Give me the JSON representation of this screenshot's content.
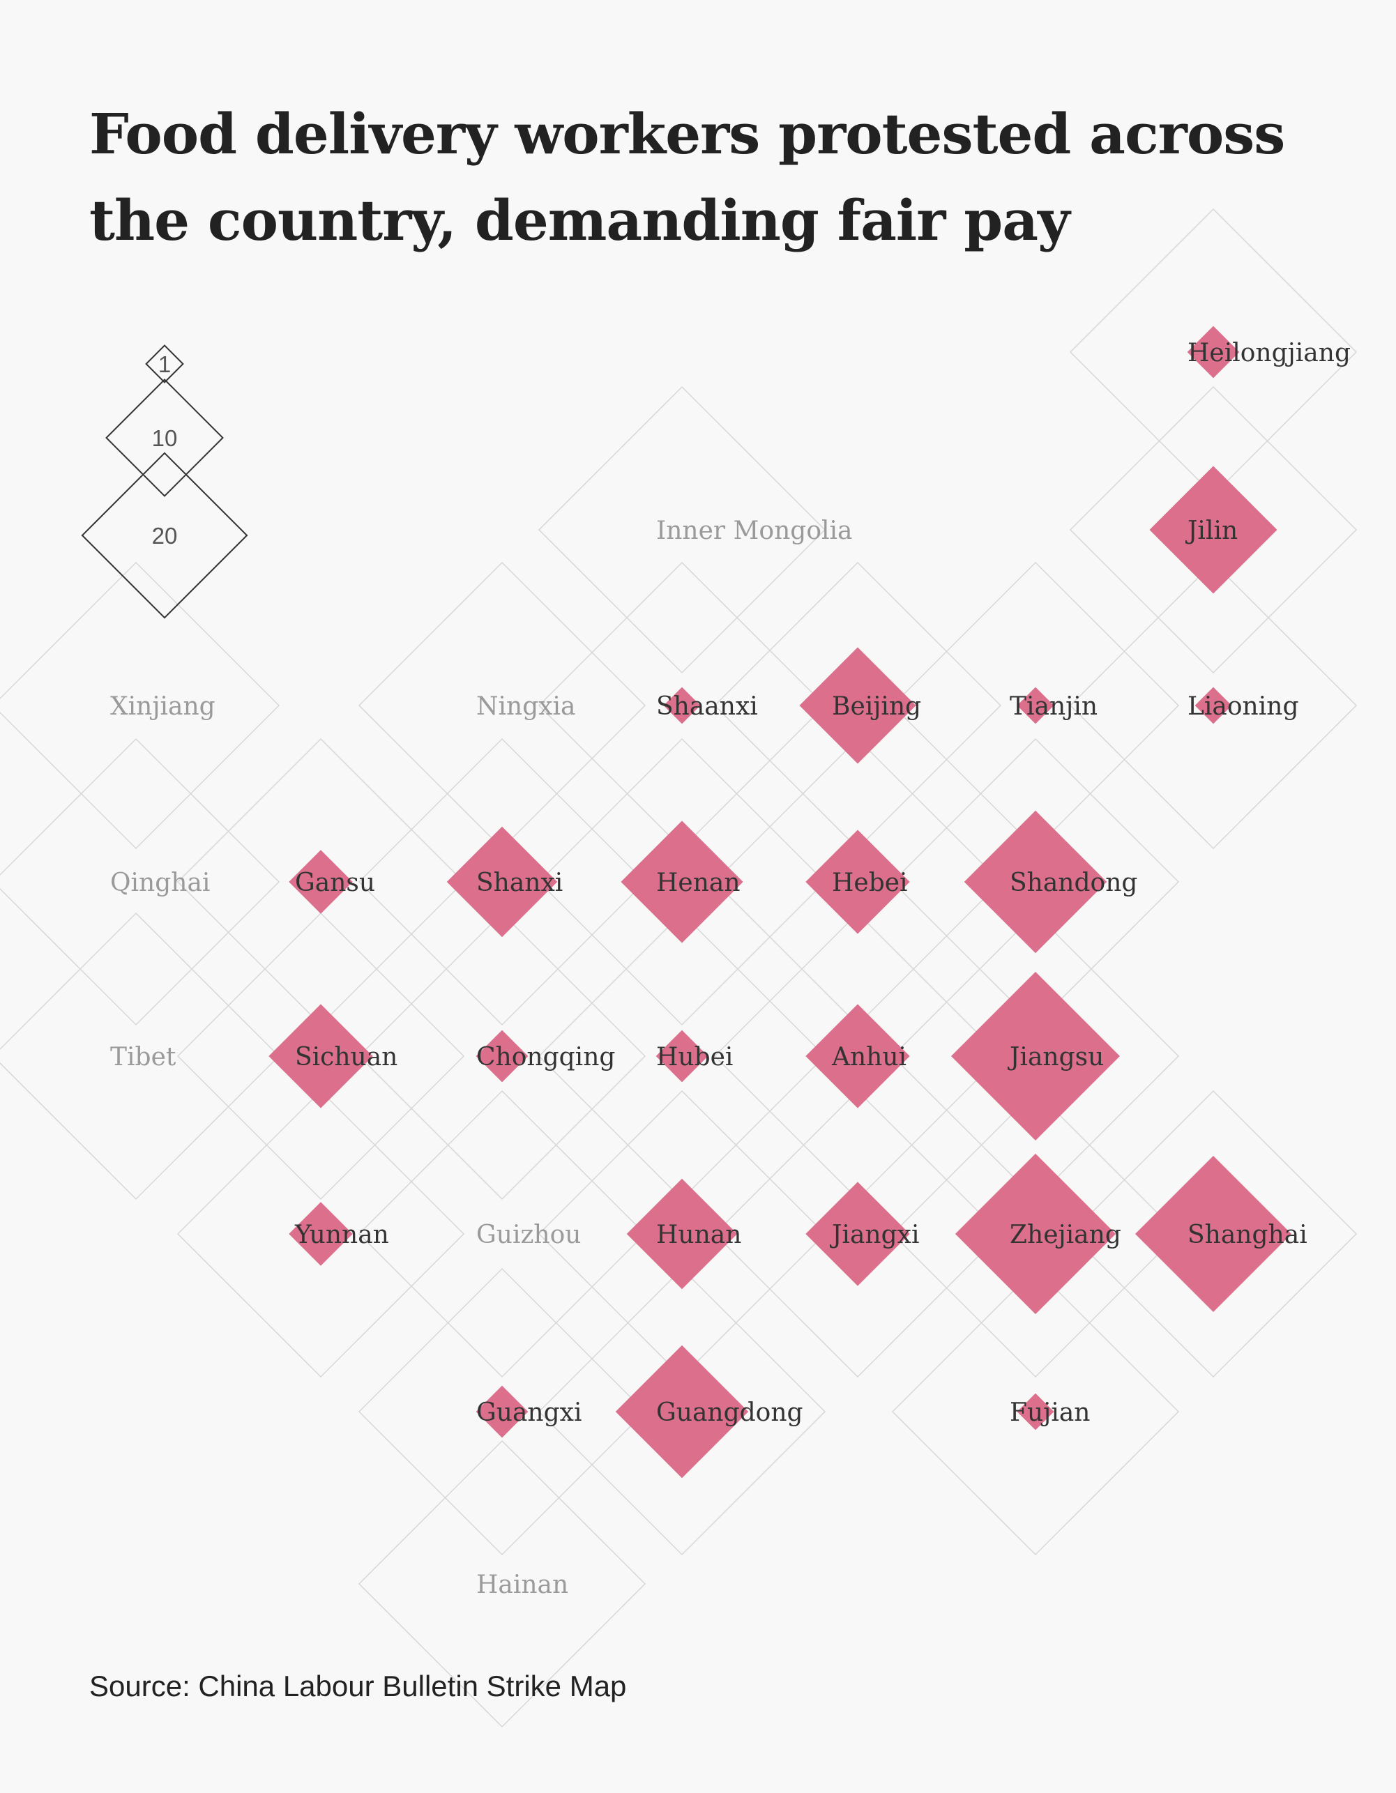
{
  "title": {
    "line1": "Food delivery workers protested across",
    "line2": "the country, demanding fair pay"
  },
  "source": "Source: China Labour Bulletin Strike Map",
  "colors": {
    "marker": "#db6f8c",
    "label_active": "#333333",
    "label_inactive": "#9a9a9a",
    "grid": "#d7d7d7",
    "background": "#f8f8f8"
  },
  "legend": [
    {
      "value": 1,
      "label": "1"
    },
    {
      "value": 10,
      "label": "10"
    },
    {
      "value": 20,
      "label": "20"
    }
  ],
  "provinces": [
    {
      "name": "Heilongjiang",
      "row": 0,
      "col": 6,
      "count": 2
    },
    {
      "name": "Inner Mongolia",
      "row": 1,
      "col": 3,
      "count": 0
    },
    {
      "name": "Jilin",
      "row": 1,
      "col": 6,
      "count": 12
    },
    {
      "name": "Xinjiang",
      "row": 2,
      "col": 0,
      "count": 0
    },
    {
      "name": "Ningxia",
      "row": 2,
      "col": 2,
      "count": 0
    },
    {
      "name": "Shaanxi",
      "row": 2,
      "col": 3,
      "count": 1
    },
    {
      "name": "Beijing",
      "row": 2,
      "col": 4,
      "count": 10
    },
    {
      "name": "Tianjin",
      "row": 2,
      "col": 5,
      "count": 1
    },
    {
      "name": "Liaoning",
      "row": 2,
      "col": 6,
      "count": 1
    },
    {
      "name": "Qinghai",
      "row": 3,
      "col": 0,
      "count": 0
    },
    {
      "name": "Gansu",
      "row": 3,
      "col": 1,
      "count": 3
    },
    {
      "name": "Shanxi",
      "row": 3,
      "col": 2,
      "count": 9
    },
    {
      "name": "Henan",
      "row": 3,
      "col": 3,
      "count": 11
    },
    {
      "name": "Hebei",
      "row": 3,
      "col": 4,
      "count": 8
    },
    {
      "name": "Shandong",
      "row": 3,
      "col": 5,
      "count": 15
    },
    {
      "name": "Tibet",
      "row": 4,
      "col": 0,
      "count": 0
    },
    {
      "name": "Sichuan",
      "row": 4,
      "col": 1,
      "count": 8
    },
    {
      "name": "Chongqing",
      "row": 4,
      "col": 2,
      "count": 2
    },
    {
      "name": "Hubei",
      "row": 4,
      "col": 3,
      "count": 2
    },
    {
      "name": "Anhui",
      "row": 4,
      "col": 4,
      "count": 8
    },
    {
      "name": "Jiangsu",
      "row": 4,
      "col": 5,
      "count": 21
    },
    {
      "name": "Yunnan",
      "row": 5,
      "col": 1,
      "count": 3
    },
    {
      "name": "Guizhou",
      "row": 5,
      "col": 2,
      "count": 0
    },
    {
      "name": "Hunan",
      "row": 5,
      "col": 3,
      "count": 9
    },
    {
      "name": "Jiangxi",
      "row": 5,
      "col": 4,
      "count": 8
    },
    {
      "name": "Zhejiang",
      "row": 5,
      "col": 5,
      "count": 19
    },
    {
      "name": "Shanghai",
      "row": 5,
      "col": 6,
      "count": 18
    },
    {
      "name": "Guangxi",
      "row": 6,
      "col": 2,
      "count": 2
    },
    {
      "name": "Guangdong",
      "row": 6,
      "col": 3,
      "count": 13
    },
    {
      "name": "Fujian",
      "row": 6,
      "col": 5,
      "count": 1
    },
    {
      "name": "Hainan",
      "row": 7,
      "col": 2,
      "count": 0
    }
  ]
}
